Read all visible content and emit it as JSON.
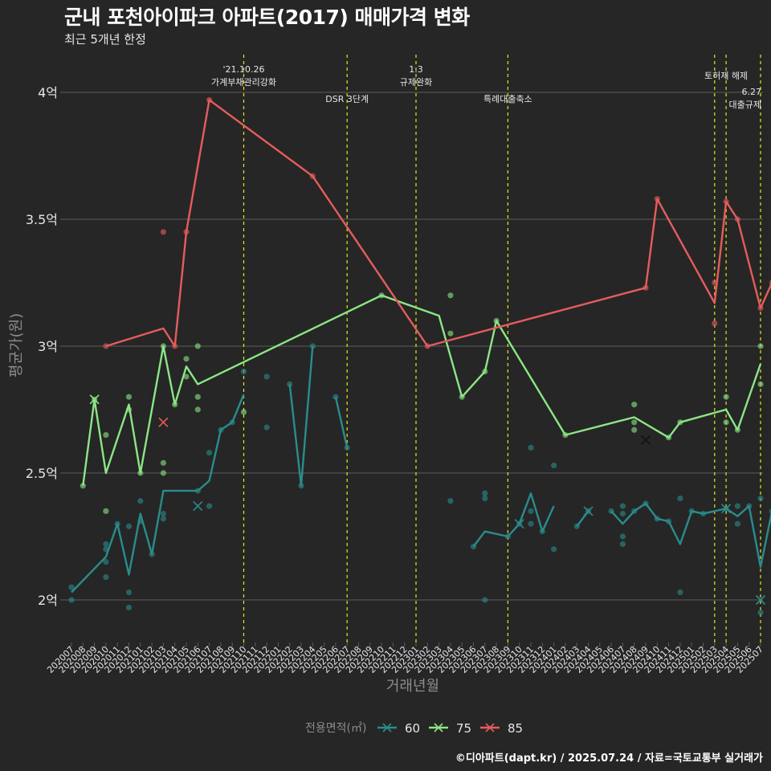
{
  "title": "군내 포천아이파크 아파트(2017) 매매가격 변화",
  "subtitle": "최근 5개년 한정",
  "caption": "©디아파트(dapt.kr) / 2025.07.24 / 자료=국토교통부 실거래가",
  "colors": {
    "background": "#262626",
    "grid": "#5c5c5c",
    "text": "#e6e6e6",
    "axis_title": "#8c8c8c",
    "event_line": "#e6e619",
    "s60": "#2a8c8c",
    "s75": "#8ce685",
    "s85": "#e65c5c"
  },
  "chart_data": {
    "type": "line",
    "xlabel": "거래년월",
    "ylabel": "평균가(원)",
    "ylim": [
      1.8,
      4.2
    ],
    "grid": true,
    "legend_position": "bottom",
    "legend_title": "전용면적(㎡)",
    "x": [
      "202007",
      "202008",
      "202009",
      "202010",
      "202011",
      "202012",
      "202101",
      "202102",
      "202103",
      "202104",
      "202105",
      "202106",
      "202107",
      "202108",
      "202109",
      "202110",
      "202111",
      "202112",
      "202201",
      "202202",
      "202203",
      "202204",
      "202205",
      "202206",
      "202207",
      "202208",
      "202209",
      "202210",
      "202211",
      "202212",
      "202301",
      "202302",
      "202303",
      "202304",
      "202305",
      "202306",
      "202307",
      "202308",
      "202309",
      "202310",
      "202311",
      "202312",
      "202401",
      "202402",
      "202403",
      "202404",
      "202405",
      "202406",
      "202407",
      "202408",
      "202409",
      "202410",
      "202411",
      "202412",
      "202501",
      "202502",
      "202503",
      "202504",
      "202505",
      "202506",
      "202507"
    ],
    "yticks": [
      {
        "value": 2.0,
        "label": "2억"
      },
      {
        "value": 2.5,
        "label": "2.5억"
      },
      {
        "value": 3.0,
        "label": "3억"
      },
      {
        "value": 3.5,
        "label": "3.5억"
      },
      {
        "value": 4.0,
        "label": "4억"
      }
    ],
    "series": [
      {
        "name": "60",
        "color_key": "s60",
        "line": [
          [
            0,
            2.03
          ],
          [
            3,
            2.17
          ],
          [
            4,
            2.3
          ],
          [
            5,
            2.1
          ],
          [
            6,
            2.34
          ],
          [
            7,
            2.18
          ],
          [
            8,
            2.43
          ],
          [
            11,
            2.43
          ],
          [
            12,
            2.47
          ],
          [
            13,
            2.67
          ],
          [
            14,
            2.7
          ],
          [
            15,
            2.81
          ],
          null,
          [
            19,
            2.85
          ],
          [
            20,
            2.45
          ],
          [
            21,
            3.0
          ],
          null,
          [
            23,
            2.8
          ],
          [
            24,
            2.6
          ],
          null,
          [
            35,
            2.21
          ],
          [
            36,
            2.27
          ],
          [
            38,
            2.25
          ],
          [
            39,
            2.3
          ],
          [
            40,
            2.42
          ],
          [
            41,
            2.27
          ],
          [
            42,
            2.37
          ],
          null,
          [
            44,
            2.29
          ],
          [
            45,
            2.35
          ],
          null,
          [
            47,
            2.35
          ],
          [
            48,
            2.3
          ],
          [
            49,
            2.35
          ],
          [
            50,
            2.38
          ],
          [
            51,
            2.32
          ],
          [
            52,
            2.31
          ],
          [
            53,
            2.22
          ],
          [
            54,
            2.35
          ],
          [
            55,
            2.34
          ],
          [
            57,
            2.36
          ],
          [
            58,
            2.33
          ],
          [
            59,
            2.37
          ],
          [
            60,
            2.13
          ],
          [
            61,
            2.35
          ]
        ],
        "points": [
          [
            0,
            2.05
          ],
          [
            0,
            2.0
          ],
          [
            3,
            2.2
          ],
          [
            3,
            2.22
          ],
          [
            3,
            2.15
          ],
          [
            3,
            2.09
          ],
          [
            4,
            2.3
          ],
          [
            5,
            2.29
          ],
          [
            5,
            2.03
          ],
          [
            5,
            1.97
          ],
          [
            6,
            2.39
          ],
          [
            6,
            2.31
          ],
          [
            7,
            2.18
          ],
          [
            8,
            2.34
          ],
          [
            8,
            2.32
          ],
          [
            11,
            2.43
          ],
          [
            12,
            2.58
          ],
          [
            12,
            2.37
          ],
          [
            13,
            2.67
          ],
          [
            14,
            2.7
          ],
          [
            15,
            2.9
          ],
          [
            17,
            2.88
          ],
          [
            17,
            2.68
          ],
          [
            19,
            2.85
          ],
          [
            20,
            2.45
          ],
          [
            21,
            3.0
          ],
          [
            23,
            2.8
          ],
          [
            24,
            2.6
          ],
          [
            33,
            2.39
          ],
          [
            35,
            2.21
          ],
          [
            36,
            2.42
          ],
          [
            36,
            2.4
          ],
          [
            36,
            2.0
          ],
          [
            38,
            2.25
          ],
          [
            39,
            2.3
          ],
          [
            40,
            2.35
          ],
          [
            40,
            2.6
          ],
          [
            40,
            2.3
          ],
          [
            41,
            2.27
          ],
          [
            42,
            2.53
          ],
          [
            42,
            2.2
          ],
          [
            44,
            2.29
          ],
          [
            45,
            2.35
          ],
          [
            47,
            2.35
          ],
          [
            48,
            2.37
          ],
          [
            48,
            2.34
          ],
          [
            48,
            2.25
          ],
          [
            48,
            2.22
          ],
          [
            49,
            2.35
          ],
          [
            50,
            2.38
          ],
          [
            51,
            2.32
          ],
          [
            52,
            2.31
          ],
          [
            53,
            2.4
          ],
          [
            53,
            2.03
          ],
          [
            54,
            2.35
          ],
          [
            55,
            2.34
          ],
          [
            57,
            2.36
          ],
          [
            58,
            2.37
          ],
          [
            58,
            2.3
          ],
          [
            59,
            2.37
          ],
          [
            60,
            2.4
          ],
          [
            60,
            1.95
          ],
          [
            61,
            2.35
          ]
        ],
        "crosses": [
          [
            11,
            2.37
          ],
          [
            39,
            2.3
          ],
          [
            45,
            2.35
          ],
          [
            57,
            2.36
          ],
          [
            60,
            2.0
          ]
        ]
      },
      {
        "name": "75",
        "color_key": "s75",
        "line": [
          [
            1,
            2.45
          ],
          [
            2,
            2.79
          ],
          [
            3,
            2.5
          ],
          [
            5,
            2.77
          ],
          [
            6,
            2.5
          ],
          [
            8,
            3.0
          ],
          [
            9,
            2.77
          ],
          [
            10,
            2.92
          ],
          [
            11,
            2.85
          ],
          [
            27,
            3.2
          ],
          [
            32,
            3.12
          ],
          [
            34,
            2.8
          ],
          [
            36,
            2.9
          ],
          [
            37,
            3.1
          ],
          [
            43,
            2.65
          ],
          [
            49,
            2.72
          ],
          [
            52,
            2.64
          ],
          [
            53,
            2.7
          ],
          [
            57,
            2.75
          ],
          [
            58,
            2.67
          ],
          [
            60,
            2.93
          ]
        ],
        "points": [
          [
            1,
            2.45
          ],
          [
            2,
            2.79
          ],
          [
            3,
            2.65
          ],
          [
            3,
            2.35
          ],
          [
            5,
            2.8
          ],
          [
            5,
            2.75
          ],
          [
            6,
            2.5
          ],
          [
            8,
            3.0
          ],
          [
            8,
            2.54
          ],
          [
            8,
            2.5
          ],
          [
            9,
            2.77
          ],
          [
            10,
            2.95
          ],
          [
            10,
            2.88
          ],
          [
            11,
            3.0
          ],
          [
            11,
            2.8
          ],
          [
            11,
            2.75
          ],
          [
            15,
            2.74
          ],
          [
            27,
            3.2
          ],
          [
            33,
            3.2
          ],
          [
            33,
            3.05
          ],
          [
            34,
            2.8
          ],
          [
            36,
            2.9
          ],
          [
            37,
            3.1
          ],
          [
            43,
            2.65
          ],
          [
            49,
            2.77
          ],
          [
            49,
            2.7
          ],
          [
            49,
            2.67
          ],
          [
            52,
            2.64
          ],
          [
            53,
            2.7
          ],
          [
            57,
            2.8
          ],
          [
            57,
            2.7
          ],
          [
            58,
            2.67
          ],
          [
            60,
            3.0
          ],
          [
            60,
            2.85
          ]
        ],
        "crosses": [
          [
            2,
            2.79
          ],
          [
            50,
            2.63
          ]
        ]
      },
      {
        "name": "85",
        "color_key": "s85",
        "line": [
          [
            3,
            3.0
          ],
          [
            8,
            3.07
          ],
          [
            9,
            3.0
          ],
          [
            10,
            3.45
          ],
          [
            12,
            3.97
          ],
          [
            21,
            3.67
          ],
          [
            31,
            3.0
          ],
          [
            50,
            3.23
          ],
          [
            51,
            3.58
          ],
          [
            56,
            3.17
          ],
          [
            57,
            3.57
          ],
          [
            58,
            3.5
          ],
          [
            60,
            3.15
          ],
          [
            61,
            3.25
          ]
        ],
        "points": [
          [
            3,
            3.0
          ],
          [
            8,
            3.45
          ],
          [
            9,
            3.0
          ],
          [
            10,
            3.45
          ],
          [
            12,
            3.97
          ],
          [
            21,
            3.67
          ],
          [
            31,
            3.0
          ],
          [
            50,
            3.23
          ],
          [
            51,
            3.58
          ],
          [
            56,
            3.25
          ],
          [
            56,
            3.09
          ],
          [
            57,
            3.57
          ],
          [
            58,
            3.5
          ],
          [
            60,
            3.15
          ],
          [
            61,
            3.25
          ]
        ],
        "crosses": [
          [
            8,
            2.7
          ]
        ]
      }
    ],
    "events": [
      {
        "x": 15,
        "label_lines": [
          "'21.10.26",
          "가계부채관리강화"
        ],
        "row": 0
      },
      {
        "x": 24,
        "label_lines": [
          "DSR 3단계"
        ],
        "row": 2
      },
      {
        "x": 30,
        "label_lines": [
          "1.3",
          "규제완화"
        ],
        "row": 0
      },
      {
        "x": 38,
        "label_lines": [
          "특례대출축소"
        ],
        "row": 2
      },
      {
        "x": 56,
        "label_lines": [],
        "row": 0
      },
      {
        "x": 57,
        "label_lines": [
          "토허제 해제"
        ],
        "row": 1
      },
      {
        "x": 60,
        "label_lines": [
          "6.27",
          "대출규제"
        ],
        "row": 3
      }
    ]
  }
}
